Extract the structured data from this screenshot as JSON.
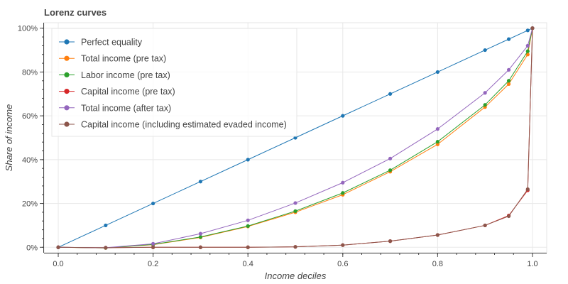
{
  "chart_data": {
    "type": "line",
    "title": "Lorenz curves",
    "xlabel": "Income deciles",
    "ylabel": "Share of income",
    "xlim": [
      -0.03,
      1.03
    ],
    "ylim": [
      -0.025,
      1.025
    ],
    "x_ticks": [
      0.0,
      0.2,
      0.4,
      0.6,
      0.8,
      1.0
    ],
    "x_tick_labels": [
      "0.0",
      "0.2",
      "0.4",
      "0.6",
      "0.8",
      "1.0"
    ],
    "y_ticks": [
      0,
      0.2,
      0.4,
      0.6,
      0.8,
      1.0
    ],
    "y_tick_labels": [
      "0%",
      "20%",
      "40%",
      "60%",
      "80%",
      "100%"
    ],
    "grid": true,
    "legend_position": "top-left",
    "x": [
      0.0,
      0.1,
      0.2,
      0.3,
      0.4,
      0.5,
      0.6,
      0.7,
      0.8,
      0.9,
      0.95,
      0.99,
      1.0
    ],
    "series": [
      {
        "name": "Perfect equality",
        "color": "#1f77b4",
        "values": [
          0.0,
          0.1,
          0.2,
          0.3,
          0.4,
          0.5,
          0.6,
          0.7,
          0.8,
          0.9,
          0.95,
          0.99,
          1.0
        ]
      },
      {
        "name": "Total income (pre tax)",
        "color": "#ff7f0e",
        "values": [
          0.0,
          -0.003,
          0.012,
          0.045,
          0.095,
          0.16,
          0.24,
          0.345,
          0.47,
          0.64,
          0.745,
          0.88,
          1.0
        ]
      },
      {
        "name": "Labor income (pre tax)",
        "color": "#2ca02c",
        "values": [
          0.0,
          -0.003,
          0.013,
          0.047,
          0.097,
          0.165,
          0.248,
          0.352,
          0.482,
          0.65,
          0.76,
          0.895,
          1.0
        ]
      },
      {
        "name": "Capital income (pre tax)",
        "color": "#d62728",
        "values": [
          0.0,
          -0.002,
          0.0,
          0.0,
          0.0,
          0.002,
          0.01,
          0.028,
          0.056,
          0.1,
          0.145,
          0.26,
          1.0
        ]
      },
      {
        "name": "Total income (after tax)",
        "color": "#9467bd",
        "values": [
          0.0,
          -0.002,
          0.016,
          0.062,
          0.123,
          0.202,
          0.295,
          0.405,
          0.54,
          0.705,
          0.81,
          0.92,
          1.0
        ]
      },
      {
        "name": "Capital income (including estimated evaded income)",
        "color": "#8c564b",
        "values": [
          0.0,
          -0.002,
          0.0,
          0.0,
          0.0,
          0.002,
          0.01,
          0.028,
          0.056,
          0.1,
          0.142,
          0.265,
          1.0
        ]
      }
    ]
  }
}
